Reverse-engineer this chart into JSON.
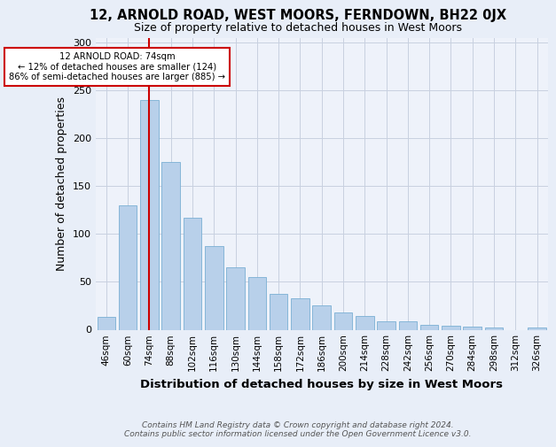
{
  "title": "12, ARNOLD ROAD, WEST MOORS, FERNDOWN, BH22 0JX",
  "subtitle": "Size of property relative to detached houses in West Moors",
  "xlabel": "Distribution of detached houses by size in West Moors",
  "ylabel": "Number of detached properties",
  "footnote1": "Contains HM Land Registry data © Crown copyright and database right 2024.",
  "footnote2": "Contains public sector information licensed under the Open Government Licence v3.0.",
  "categories": [
    "46sqm",
    "60sqm",
    "74sqm",
    "88sqm",
    "102sqm",
    "116sqm",
    "130sqm",
    "144sqm",
    "158sqm",
    "172sqm",
    "186sqm",
    "200sqm",
    "214sqm",
    "228sqm",
    "242sqm",
    "256sqm",
    "270sqm",
    "284sqm",
    "298sqm",
    "312sqm",
    "326sqm"
  ],
  "values": [
    13,
    130,
    240,
    175,
    117,
    87,
    65,
    55,
    37,
    33,
    25,
    18,
    14,
    9,
    9,
    5,
    4,
    3,
    2,
    0,
    2
  ],
  "bar_color": "#b8d0ea",
  "bar_edge_color": "#7aafd4",
  "highlight_color": "#cc0000",
  "annotation_text": "12 ARNOLD ROAD: 74sqm\n← 12% of detached houses are smaller (124)\n86% of semi-detached houses are larger (885) →",
  "annotation_box_color": "white",
  "annotation_box_edge": "#cc0000",
  "ylim": [
    0,
    305
  ],
  "yticks": [
    0,
    50,
    100,
    150,
    200,
    250,
    300
  ],
  "background_color": "#e8eef8",
  "plot_bg_color": "#eef2fa",
  "grid_color": "#c8d0e0",
  "title_fontsize": 10.5,
  "subtitle_fontsize": 9,
  "ylabel_fontsize": 9,
  "xlabel_fontsize": 9.5,
  "tick_fontsize": 7.5,
  "footnote_fontsize": 6.5
}
